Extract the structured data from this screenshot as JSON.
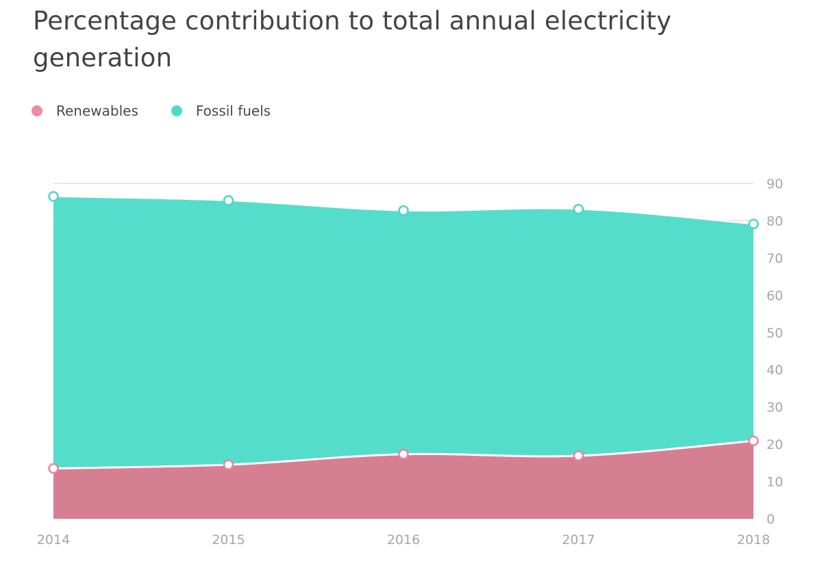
{
  "title": "Percentage contribution to total annual electricity generation",
  "legend": [
    {
      "label": "Renewables",
      "color": "#f08aa0"
    },
    {
      "label": "Fossil fuels",
      "color": "#4ddbc8"
    }
  ],
  "colors": {
    "fossil_fill": "#55ddcb",
    "renewables_fill": "#d67f93",
    "fossil_stroke": "#4fd6c4",
    "renewables_stroke": "#ea86a0",
    "grid": "#e6e6e6",
    "tick_text": "#a6a6a6"
  },
  "chart_data": {
    "type": "area",
    "title": "Percentage contribution to total annual electricity generation",
    "x": [
      "2014",
      "2015",
      "2016",
      "2017",
      "2018"
    ],
    "series": [
      {
        "name": "Renewables",
        "values": [
          13.5,
          14.5,
          17.3,
          16.9,
          20.9
        ]
      },
      {
        "name": "Fossil fuels",
        "values": [
          86.5,
          85.4,
          82.7,
          83.1,
          79.1
        ]
      }
    ],
    "y_ticks": [
      0,
      10,
      20,
      30,
      40,
      50,
      60,
      70,
      80,
      90
    ],
    "ylim": [
      0,
      90
    ],
    "y_axis_side": "right",
    "grid": true,
    "legend_position": "top-left"
  }
}
